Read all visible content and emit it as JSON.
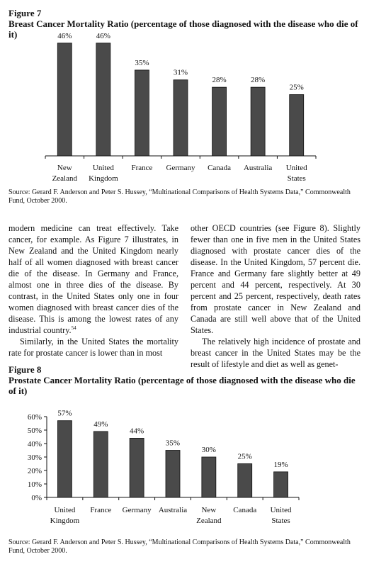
{
  "figure7": {
    "label": "Figure 7",
    "title": "Breast Cancer Mortality Ratio (percentage of those diagnosed with the disease who die of it)",
    "source": "Source: Gerard F. Anderson and Peter S. Hussey, “Multinational Comparisons of Health Systems Data,” Commonwealth Fund, October 2000."
  },
  "figure8": {
    "label": "Figure 8",
    "title": "Prostate Cancer Mortality Ratio (percentage of those diagnosed with the disease who die of it)",
    "source": "Source: Gerard F. Anderson and Peter S. Hussey, “Multinational Comparisons of Health Systems Data,” Commonwealth Fund, October 2000."
  },
  "body": {
    "left_p1": "modern medicine can treat effectively. Take cancer, for example. As Figure 7 illustrates, in New Zealand and the United Kingdom nearly half of all women diagnosed with breast cancer die of the disease. In Germany and France, almost one in three dies of the disease. By contrast, in the United States only one in four women diagnosed with breast cancer dies of the disease. This is among the lowest rates of any industrial country.",
    "left_p1_note": "54",
    "left_p2": "Similarly, in the United States the mortality rate for prostate cancer is lower than in most",
    "right_p1": "other OECD countries (see Figure 8). Slightly fewer than one in five men in the United States diagnosed with prostate cancer dies of the disease. In the United Kingdom, 57 percent die. France and Germany fare slightly better at 49 percent and 44 percent, respectively. At 30 percent and 25 percent, respectively, death rates from prostate cancer in New Zealand and Canada are still well above that of the United States.",
    "right_p2": "The relatively high incidence of prostate and breast cancer in the United States may be the result of lifestyle and diet as well as genet-"
  },
  "chart_data": [
    {
      "type": "bar",
      "title": "Breast Cancer Mortality Ratio (percentage of those diagnosed with the disease who die of it)",
      "categories": [
        [
          "New",
          "Zealand"
        ],
        [
          "United",
          "Kingdom"
        ],
        [
          "France"
        ],
        [
          "Germany"
        ],
        [
          "Canada"
        ],
        [
          "Australia"
        ],
        [
          "United",
          "States"
        ]
      ],
      "values": [
        46,
        46,
        35,
        31,
        28,
        28,
        25
      ],
      "value_labels": [
        "46%",
        "46%",
        "35%",
        "31%",
        "28%",
        "28%",
        "25%"
      ],
      "ylim": [
        0,
        50
      ],
      "y_axis_shown": false,
      "bar_color": "#4a4a4a"
    },
    {
      "type": "bar",
      "title": "Prostate Cancer Mortality Ratio (percentage of those diagnosed with the disease who die of it)",
      "categories": [
        [
          "United",
          "Kingdom"
        ],
        [
          "France"
        ],
        [
          "Germany"
        ],
        [
          "Australia"
        ],
        [
          "New",
          "Zealand"
        ],
        [
          "Canada"
        ],
        [
          "United",
          "States"
        ]
      ],
      "values": [
        57,
        49,
        44,
        35,
        30,
        25,
        19
      ],
      "value_labels": [
        "57%",
        "49%",
        "44%",
        "35%",
        "30%",
        "25%",
        "19%"
      ],
      "ylim": [
        0,
        60
      ],
      "yticks": [
        0,
        10,
        20,
        30,
        40,
        50,
        60
      ],
      "ytick_labels": [
        "0%",
        "10%",
        "20%",
        "30%",
        "40%",
        "50%",
        "60%"
      ],
      "y_axis_shown": true,
      "bar_color": "#4a4a4a"
    }
  ]
}
